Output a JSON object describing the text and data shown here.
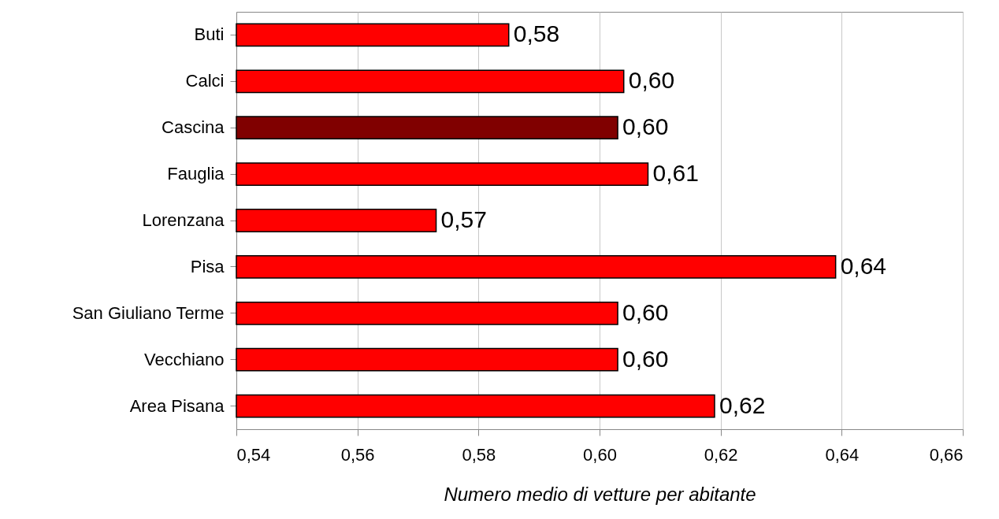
{
  "chart_data": {
    "type": "bar",
    "orientation": "horizontal",
    "xlabel": "Numero medio di vetture per abitante",
    "categories": [
      "Buti",
      "Calci",
      "Cascina",
      "Fauglia",
      "Lorenzana",
      "Pisa",
      "San Giuliano Terme",
      "Vecchiano",
      "Area Pisana"
    ],
    "values": [
      0.585,
      0.604,
      0.603,
      0.608,
      0.573,
      0.639,
      0.603,
      0.603,
      0.619
    ],
    "value_labels": [
      "0,58",
      "0,60",
      "0,60",
      "0,61",
      "0,57",
      "0,64",
      "0,60",
      "0,60",
      "0,62"
    ],
    "colors": [
      "#ff0000",
      "#ff0000",
      "#800000",
      "#ff0000",
      "#ff0000",
      "#ff0000",
      "#ff0000",
      "#ff0000",
      "#ff0000"
    ],
    "xlim": [
      0.54,
      0.66
    ],
    "xticks": [
      {
        "value": 0.54,
        "label": "0,54"
      },
      {
        "value": 0.56,
        "label": "0,56"
      },
      {
        "value": 0.58,
        "label": "0,58"
      },
      {
        "value": 0.6,
        "label": "0,60"
      },
      {
        "value": 0.62,
        "label": "0,62"
      },
      {
        "value": 0.64,
        "label": "0,64"
      },
      {
        "value": 0.66,
        "label": "0,66"
      }
    ],
    "grid": "x"
  }
}
